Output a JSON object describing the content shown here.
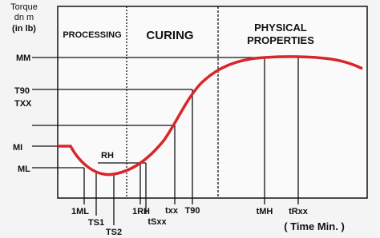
{
  "y_axis": {
    "title_lines": [
      "Torque",
      "dn m",
      "(in  lb)"
    ]
  },
  "zones": {
    "processing": "PROCESSING",
    "curing": "CURING",
    "physical": [
      "PHYSICAL",
      "PROPERTIES"
    ]
  },
  "left_labels": {
    "mm": "MM",
    "t90": "T90",
    "txx": "TXX",
    "mi": "MI",
    "ml": "ML",
    "rh": "RH"
  },
  "bottom_labels": {
    "ml": "1ML",
    "ts1": "TS1",
    "ts2": "TS2",
    "rh": "1RH",
    "tsxx": "tSxx",
    "txx": "txx",
    "t90": "T90",
    "tmh": "tMH",
    "trxx": "tRxx"
  },
  "x_axis": {
    "title": "( Time  Min. )"
  }
}
